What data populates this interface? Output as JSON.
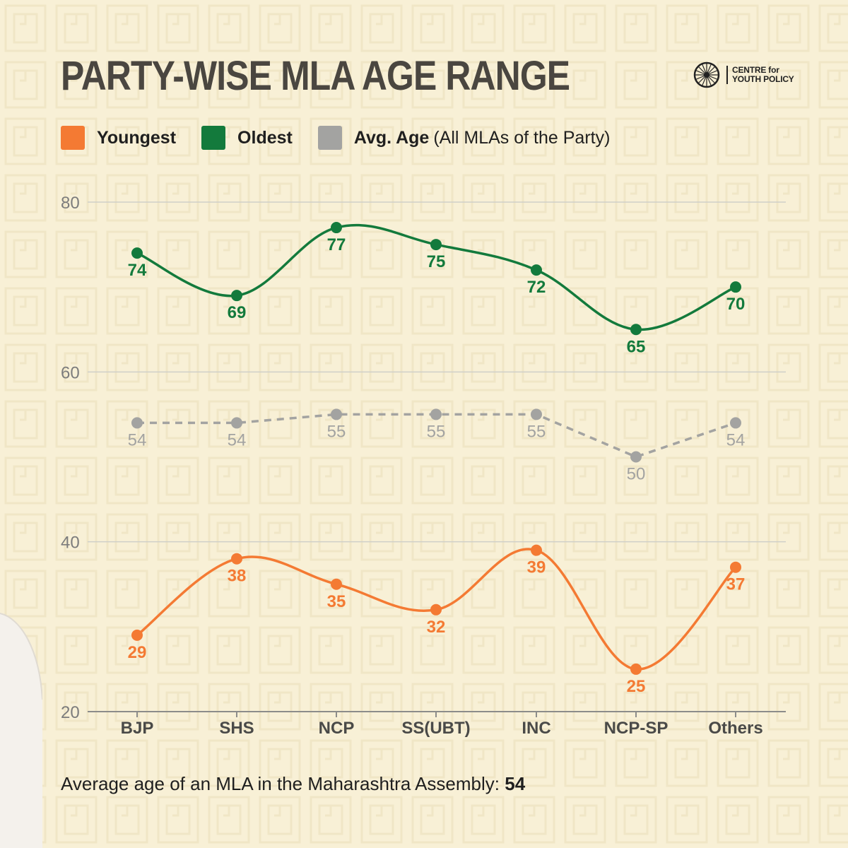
{
  "header": {
    "title": "PARTY-WISE MLA AGE RANGE",
    "logo_line1": "CENTRE for",
    "logo_line2": "YOUTH POLICY"
  },
  "legend": {
    "youngest": "Youngest",
    "oldest": "Oldest",
    "avg": "Avg. Age",
    "avg_note": "(All MLAs of the Party)"
  },
  "footnote": {
    "text": "Average age of an MLA in the Maharashtra Assembly:",
    "value": "54"
  },
  "colors": {
    "youngest": "#f47a33",
    "oldest": "#137a3c",
    "avg": "#a3a3a1",
    "grid": "#cfcfc9",
    "axis": "#7c7c7c",
    "background": "#f8f0d6"
  },
  "chart_data": {
    "type": "line",
    "title": "PARTY-WISE MLA AGE RANGE",
    "xlabel": "",
    "ylabel": "",
    "ylim": [
      20,
      80
    ],
    "yticks": [
      20,
      40,
      60,
      80
    ],
    "grid": true,
    "legend_position": "top-left",
    "categories": [
      "BJP",
      "SHS",
      "NCP",
      "SS(UBT)",
      "INC",
      "NCP-SP",
      "Others"
    ],
    "series": [
      {
        "name": "Youngest",
        "key": "youngest",
        "style": "solid",
        "values": [
          29,
          38,
          35,
          32,
          39,
          25,
          37
        ]
      },
      {
        "name": "Oldest",
        "key": "oldest",
        "style": "solid",
        "values": [
          74,
          69,
          77,
          75,
          72,
          65,
          70
        ]
      },
      {
        "name": "Avg. Age",
        "key": "avg",
        "style": "dashed",
        "values": [
          54,
          54,
          55,
          55,
          55,
          50,
          54
        ]
      }
    ]
  }
}
